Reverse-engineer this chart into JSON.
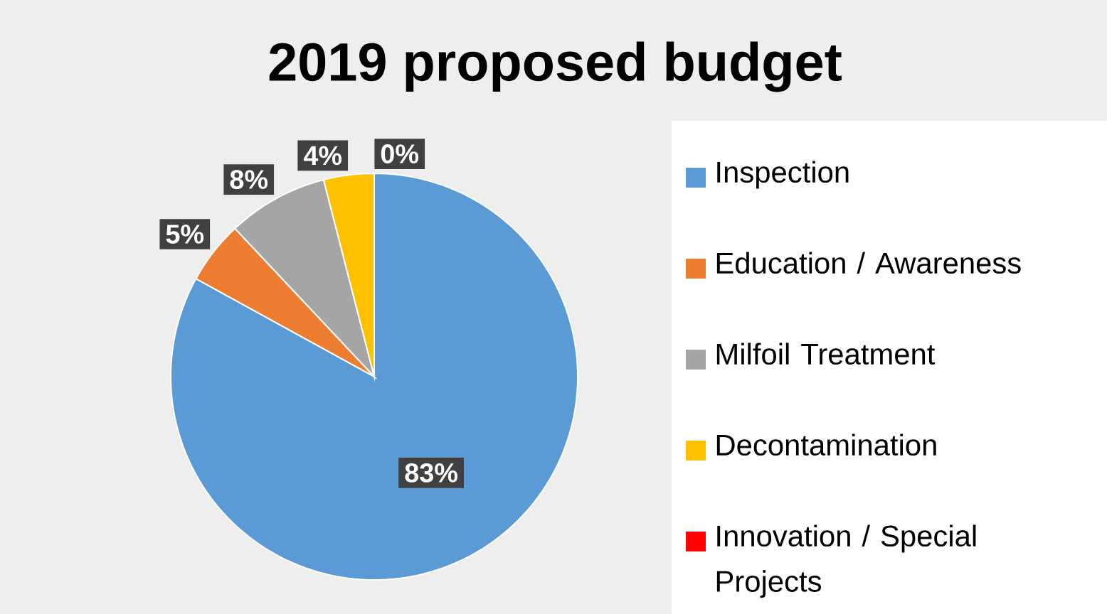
{
  "chart_data": {
    "type": "pie",
    "title": "2019 proposed budget",
    "categories": [
      "Inspection",
      "Education / Awareness",
      "Milfoil Treatment",
      "Decontamination",
      "Innovation / Special Projects"
    ],
    "values": [
      83,
      5,
      8,
      4,
      0
    ],
    "colors": [
      "#5b9bd5",
      "#ed7d31",
      "#a5a5a5",
      "#ffc000",
      "#ff0000"
    ],
    "value_labels": [
      "83%",
      "5%",
      "8%",
      "4%",
      "0%"
    ],
    "legend": "right"
  }
}
